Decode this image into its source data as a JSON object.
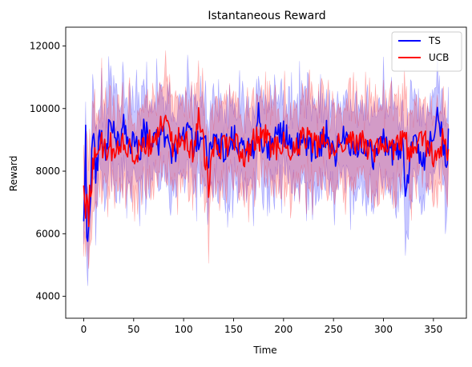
{
  "chart_data": {
    "type": "line",
    "title": "Istantaneous Reward",
    "xlabel": "Time",
    "ylabel": "Reward",
    "xlim": [
      -18,
      383
    ],
    "ylim": [
      3300,
      12600
    ],
    "xticks": [
      0,
      50,
      100,
      150,
      200,
      250,
      300,
      350
    ],
    "yticks": [
      4000,
      6000,
      8000,
      10000,
      12000
    ],
    "grid": false,
    "legend_position": "top-right",
    "series": [
      {
        "name": "TS",
        "color": "#0000ff",
        "band_color": "#0000ff",
        "key_points": [
          [
            0,
            6600
          ],
          [
            1,
            7800
          ],
          [
            2,
            9150
          ],
          [
            3,
            6000
          ],
          [
            4,
            5700
          ],
          [
            5,
            6200
          ],
          [
            6,
            6800
          ],
          [
            8,
            8400
          ],
          [
            10,
            9400
          ],
          [
            12,
            7900
          ],
          [
            15,
            8700
          ],
          [
            18,
            9300
          ],
          [
            20,
            8500
          ],
          [
            25,
            9200
          ],
          [
            30,
            9600
          ],
          [
            35,
            8800
          ],
          [
            40,
            9400
          ],
          [
            45,
            8600
          ],
          [
            50,
            9000
          ],
          [
            55,
            8500
          ],
          [
            60,
            9300
          ],
          [
            70,
            8800
          ],
          [
            80,
            9100
          ],
          [
            90,
            8500
          ],
          [
            100,
            9000
          ],
          [
            105,
            9500
          ],
          [
            110,
            8700
          ],
          [
            120,
            9200
          ],
          [
            125,
            8300
          ],
          [
            130,
            9000
          ],
          [
            140,
            8700
          ],
          [
            150,
            9100
          ],
          [
            160,
            8800
          ],
          [
            170,
            8600
          ],
          [
            175,
            9800
          ],
          [
            180,
            8500
          ],
          [
            190,
            8900
          ],
          [
            200,
            9200
          ],
          [
            210,
            8700
          ],
          [
            220,
            9100
          ],
          [
            230,
            8500
          ],
          [
            240,
            9000
          ],
          [
            245,
            9300
          ],
          [
            250,
            8400
          ],
          [
            260,
            9100
          ],
          [
            270,
            8600
          ],
          [
            280,
            8900
          ],
          [
            290,
            8500
          ],
          [
            300,
            8900
          ],
          [
            310,
            8600
          ],
          [
            320,
            8800
          ],
          [
            322,
            7400
          ],
          [
            330,
            9000
          ],
          [
            340,
            8400
          ],
          [
            350,
            9200
          ],
          [
            355,
            9800
          ],
          [
            360,
            8700
          ],
          [
            363,
            8200
          ],
          [
            365,
            9000
          ]
        ]
      },
      {
        "name": "UCB",
        "color": "#ff0000",
        "band_color": "#ff0000",
        "key_points": [
          [
            0,
            7700
          ],
          [
            1,
            7200
          ],
          [
            2,
            6500
          ],
          [
            3,
            7400
          ],
          [
            4,
            6900
          ],
          [
            5,
            6600
          ],
          [
            6,
            7300
          ],
          [
            8,
            7800
          ],
          [
            10,
            8300
          ],
          [
            12,
            8700
          ],
          [
            15,
            8500
          ],
          [
            18,
            9100
          ],
          [
            20,
            8600
          ],
          [
            25,
            8900
          ],
          [
            30,
            8700
          ],
          [
            40,
            8900
          ],
          [
            50,
            8600
          ],
          [
            60,
            8800
          ],
          [
            70,
            9000
          ],
          [
            80,
            9500
          ],
          [
            90,
            8800
          ],
          [
            100,
            9100
          ],
          [
            110,
            8600
          ],
          [
            115,
            9700
          ],
          [
            120,
            8800
          ],
          [
            125,
            7600
          ],
          [
            130,
            8900
          ],
          [
            140,
            8800
          ],
          [
            150,
            9000
          ],
          [
            160,
            8500
          ],
          [
            170,
            8900
          ],
          [
            180,
            9200
          ],
          [
            190,
            8700
          ],
          [
            200,
            9000
          ],
          [
            210,
            8600
          ],
          [
            220,
            9100
          ],
          [
            230,
            8800
          ],
          [
            240,
            9000
          ],
          [
            250,
            8700
          ],
          [
            260,
            9000
          ],
          [
            270,
            8800
          ],
          [
            280,
            8900
          ],
          [
            290,
            8700
          ],
          [
            300,
            9000
          ],
          [
            310,
            8800
          ],
          [
            320,
            8900
          ],
          [
            330,
            8600
          ],
          [
            340,
            9000
          ],
          [
            350,
            8500
          ],
          [
            360,
            9000
          ],
          [
            365,
            8700
          ]
        ]
      }
    ]
  }
}
